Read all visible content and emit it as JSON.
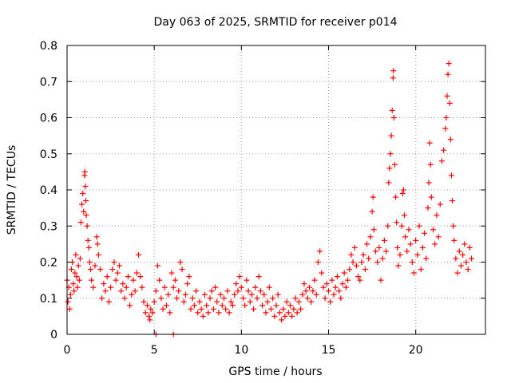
{
  "chart_data": {
    "type": "scatter",
    "title": "Day 063 of 2025, SRMTID for receiver p014",
    "xlabel": "GPS time / hours",
    "ylabel": "SRMTID / TECUs",
    "xlim": [
      0,
      24
    ],
    "ylim": [
      0,
      0.8
    ],
    "xticks": [
      0,
      5,
      10,
      15,
      20
    ],
    "yticks": [
      0,
      0.1,
      0.2,
      0.3,
      0.4,
      0.5,
      0.6,
      0.7,
      0.8
    ],
    "xtick_labels": [
      "0",
      "5",
      "10",
      "15",
      "20"
    ],
    "ytick_labels": [
      "0",
      "0.1",
      "0.2",
      "0.3",
      "0.4",
      "0.5",
      "0.6",
      "0.7",
      "0.8"
    ],
    "grid": true,
    "marker": "+",
    "color": "#ff0000",
    "series": [
      {
        "name": "SRMTID",
        "points": [
          [
            0.0,
            0.15
          ],
          [
            0.05,
            0.09
          ],
          [
            0.1,
            0.13
          ],
          [
            0.15,
            0.07
          ],
          [
            0.2,
            0.11
          ],
          [
            0.25,
            0.18
          ],
          [
            0.3,
            0.2
          ],
          [
            0.35,
            0.14
          ],
          [
            0.4,
            0.12
          ],
          [
            0.45,
            0.17
          ],
          [
            0.5,
            0.22
          ],
          [
            0.55,
            0.16
          ],
          [
            0.6,
            0.13
          ],
          [
            0.65,
            0.19
          ],
          [
            0.7,
            0.15
          ],
          [
            0.75,
            0.21
          ],
          [
            0.8,
            0.31
          ],
          [
            0.85,
            0.36
          ],
          [
            0.9,
            0.39
          ],
          [
            0.95,
            0.34
          ],
          [
            1.0,
            0.44
          ],
          [
            1.02,
            0.45
          ],
          [
            1.05,
            0.41
          ],
          [
            1.08,
            0.37
          ],
          [
            1.1,
            0.33
          ],
          [
            1.15,
            0.3
          ],
          [
            1.2,
            0.26
          ],
          [
            1.25,
            0.24
          ],
          [
            1.3,
            0.2
          ],
          [
            1.35,
            0.18
          ],
          [
            1.4,
            0.15
          ],
          [
            1.5,
            0.13
          ],
          [
            1.6,
            0.19
          ],
          [
            1.7,
            0.27
          ],
          [
            1.75,
            0.25
          ],
          [
            1.8,
            0.22
          ],
          [
            1.9,
            0.18
          ],
          [
            2.0,
            0.1
          ],
          [
            2.1,
            0.14
          ],
          [
            2.2,
            0.12
          ],
          [
            2.3,
            0.16
          ],
          [
            2.4,
            0.09
          ],
          [
            2.5,
            0.13
          ],
          [
            2.6,
            0.18
          ],
          [
            2.7,
            0.2
          ],
          [
            2.8,
            0.15
          ],
          [
            2.9,
            0.17
          ],
          [
            3.0,
            0.19
          ],
          [
            3.1,
            0.12
          ],
          [
            3.2,
            0.14
          ],
          [
            3.3,
            0.1
          ],
          [
            3.4,
            0.13
          ],
          [
            3.5,
            0.16
          ],
          [
            3.6,
            0.08
          ],
          [
            3.7,
            0.11
          ],
          [
            3.8,
            0.15
          ],
          [
            3.9,
            0.12
          ],
          [
            4.0,
            0.17
          ],
          [
            4.1,
            0.22
          ],
          [
            4.2,
            0.16
          ],
          [
            4.3,
            0.13
          ],
          [
            4.4,
            0.09
          ],
          [
            4.5,
            0.06
          ],
          [
            4.6,
            0.08
          ],
          [
            4.7,
            0.05
          ],
          [
            4.75,
            0.04
          ],
          [
            4.8,
            0.07
          ],
          [
            4.9,
            0.06
          ],
          [
            5.0,
            0.09
          ],
          [
            5.1,
            0.12
          ],
          [
            5.2,
            0.19
          ],
          [
            5.3,
            0.15
          ],
          [
            5.4,
            0.1
          ],
          [
            5.5,
            0.07
          ],
          [
            5.6,
            0.13
          ],
          [
            5.7,
            0.08
          ],
          [
            5.8,
            0.11
          ],
          [
            5.9,
            0.06
          ],
          [
            6.0,
            0.17
          ],
          [
            6.1,
            0.13
          ],
          [
            6.2,
            0.15
          ],
          [
            6.3,
            0.1
          ],
          [
            6.4,
            0.12
          ],
          [
            6.5,
            0.2
          ],
          [
            6.6,
            0.18
          ],
          [
            6.7,
            0.09
          ],
          [
            6.8,
            0.11
          ],
          [
            6.9,
            0.14
          ],
          [
            7.0,
            0.16
          ],
          [
            7.1,
            0.07
          ],
          [
            7.2,
            0.1
          ],
          [
            7.3,
            0.08
          ],
          [
            7.4,
            0.12
          ],
          [
            7.5,
            0.06
          ],
          [
            7.6,
            0.09
          ],
          [
            7.7,
            0.07
          ],
          [
            7.8,
            0.05
          ],
          [
            7.9,
            0.11
          ],
          [
            8.0,
            0.08
          ],
          [
            8.1,
            0.06
          ],
          [
            8.2,
            0.1
          ],
          [
            8.3,
            0.12
          ],
          [
            8.4,
            0.07
          ],
          [
            8.5,
            0.13
          ],
          [
            8.6,
            0.09
          ],
          [
            8.7,
            0.06
          ],
          [
            8.8,
            0.11
          ],
          [
            8.9,
            0.08
          ],
          [
            9.0,
            0.1
          ],
          [
            9.1,
            0.07
          ],
          [
            9.2,
            0.12
          ],
          [
            9.3,
            0.06
          ],
          [
            9.4,
            0.09
          ],
          [
            9.5,
            0.08
          ],
          [
            9.6,
            0.11
          ],
          [
            9.7,
            0.14
          ],
          [
            9.8,
            0.12
          ],
          [
            9.9,
            0.16
          ],
          [
            10.0,
            0.13
          ],
          [
            10.1,
            0.1
          ],
          [
            10.2,
            0.08
          ],
          [
            10.3,
            0.15
          ],
          [
            10.4,
            0.12
          ],
          [
            10.5,
            0.09
          ],
          [
            10.6,
            0.11
          ],
          [
            10.7,
            0.07
          ],
          [
            10.8,
            0.13
          ],
          [
            10.9,
            0.1
          ],
          [
            11.0,
            0.16
          ],
          [
            11.1,
            0.12
          ],
          [
            11.2,
            0.08
          ],
          [
            11.3,
            0.11
          ],
          [
            11.4,
            0.06
          ],
          [
            11.5,
            0.09
          ],
          [
            11.6,
            0.13
          ],
          [
            11.7,
            0.07
          ],
          [
            11.8,
            0.1
          ],
          [
            11.9,
            0.05
          ],
          [
            12.0,
            0.08
          ],
          [
            12.1,
            0.11
          ],
          [
            12.2,
            0.06
          ],
          [
            12.3,
            0.04
          ],
          [
            12.4,
            0.07
          ],
          [
            12.5,
            0.05
          ],
          [
            12.6,
            0.09
          ],
          [
            12.7,
            0.06
          ],
          [
            12.8,
            0.08
          ],
          [
            12.9,
            0.05
          ],
          [
            13.0,
            0.07
          ],
          [
            13.1,
            0.1
          ],
          [
            13.2,
            0.06
          ],
          [
            13.3,
            0.09
          ],
          [
            13.4,
            0.07
          ],
          [
            13.5,
            0.11
          ],
          [
            13.6,
            0.14
          ],
          [
            13.7,
            0.12
          ],
          [
            13.8,
            0.1
          ],
          [
            13.9,
            0.13
          ],
          [
            14.0,
            0.09
          ],
          [
            14.1,
            0.12
          ],
          [
            14.2,
            0.15
          ],
          [
            14.3,
            0.11
          ],
          [
            14.4,
            0.2
          ],
          [
            14.5,
            0.23
          ],
          [
            14.6,
            0.17
          ],
          [
            14.7,
            0.13
          ],
          [
            14.8,
            0.1
          ],
          [
            14.9,
            0.14
          ],
          [
            15.0,
            0.12
          ],
          [
            15.1,
            0.09
          ],
          [
            15.2,
            0.15
          ],
          [
            15.3,
            0.11
          ],
          [
            15.4,
            0.13
          ],
          [
            15.5,
            0.16
          ],
          [
            15.6,
            0.12
          ],
          [
            15.7,
            0.1
          ],
          [
            15.8,
            0.14
          ],
          [
            15.9,
            0.17
          ],
          [
            16.0,
            0.13
          ],
          [
            16.1,
            0.15
          ],
          [
            16.2,
            0.18
          ],
          [
            16.3,
            0.22
          ],
          [
            16.4,
            0.2
          ],
          [
            16.5,
            0.24
          ],
          [
            16.6,
            0.19
          ],
          [
            16.7,
            0.16
          ],
          [
            16.8,
            0.15
          ],
          [
            16.9,
            0.2
          ],
          [
            17.0,
            0.22
          ],
          [
            17.1,
            0.18
          ],
          [
            17.2,
            0.25
          ],
          [
            17.3,
            0.21
          ],
          [
            17.4,
            0.27
          ],
          [
            17.5,
            0.34
          ],
          [
            17.55,
            0.38
          ],
          [
            17.6,
            0.29
          ],
          [
            17.7,
            0.23
          ],
          [
            17.8,
            0.2
          ],
          [
            17.9,
            0.24
          ],
          [
            18.0,
            0.15
          ],
          [
            18.1,
            0.21
          ],
          [
            18.2,
            0.26
          ],
          [
            18.3,
            0.23
          ],
          [
            18.4,
            0.3
          ],
          [
            18.45,
            0.42
          ],
          [
            18.5,
            0.46
          ],
          [
            18.55,
            0.5
          ],
          [
            18.6,
            0.55
          ],
          [
            18.65,
            0.62
          ],
          [
            18.7,
            0.71
          ],
          [
            18.72,
            0.73
          ],
          [
            18.75,
            0.6
          ],
          [
            18.8,
            0.47
          ],
          [
            18.85,
            0.38
          ],
          [
            18.9,
            0.31
          ],
          [
            18.95,
            0.24
          ],
          [
            19.0,
            0.19
          ],
          [
            19.1,
            0.22
          ],
          [
            19.2,
            0.3
          ],
          [
            19.25,
            0.39
          ],
          [
            19.3,
            0.4
          ],
          [
            19.35,
            0.33
          ],
          [
            19.4,
            0.27
          ],
          [
            19.5,
            0.23
          ],
          [
            19.6,
            0.29
          ],
          [
            19.7,
            0.25
          ],
          [
            19.8,
            0.2
          ],
          [
            19.9,
            0.17
          ],
          [
            20.0,
            0.26
          ],
          [
            20.1,
            0.22
          ],
          [
            20.2,
            0.3
          ],
          [
            20.3,
            0.18
          ],
          [
            20.4,
            0.24
          ],
          [
            20.5,
            0.28
          ],
          [
            20.6,
            0.21
          ],
          [
            20.7,
            0.35
          ],
          [
            20.75,
            0.42
          ],
          [
            20.8,
            0.53
          ],
          [
            20.85,
            0.47
          ],
          [
            20.9,
            0.38
          ],
          [
            21.0,
            0.29
          ],
          [
            21.1,
            0.25
          ],
          [
            21.2,
            0.33
          ],
          [
            21.3,
            0.27
          ],
          [
            21.4,
            0.36
          ],
          [
            21.5,
            0.48
          ],
          [
            21.6,
            0.51
          ],
          [
            21.7,
            0.57
          ],
          [
            21.75,
            0.6
          ],
          [
            21.8,
            0.66
          ],
          [
            21.85,
            0.72
          ],
          [
            21.9,
            0.75
          ],
          [
            21.95,
            0.64
          ],
          [
            22.0,
            0.54
          ],
          [
            22.05,
            0.44
          ],
          [
            22.1,
            0.37
          ],
          [
            22.15,
            0.3
          ],
          [
            22.2,
            0.26
          ],
          [
            22.3,
            0.21
          ],
          [
            22.4,
            0.17
          ],
          [
            22.5,
            0.23
          ],
          [
            22.6,
            0.19
          ],
          [
            22.7,
            0.22
          ],
          [
            22.8,
            0.25
          ],
          [
            22.9,
            0.2
          ],
          [
            23.0,
            0.18
          ],
          [
            23.1,
            0.24
          ],
          [
            23.2,
            0.21
          ],
          [
            5.1,
            0.0
          ],
          [
            6.1,
            0.0
          ]
        ]
      }
    ]
  }
}
